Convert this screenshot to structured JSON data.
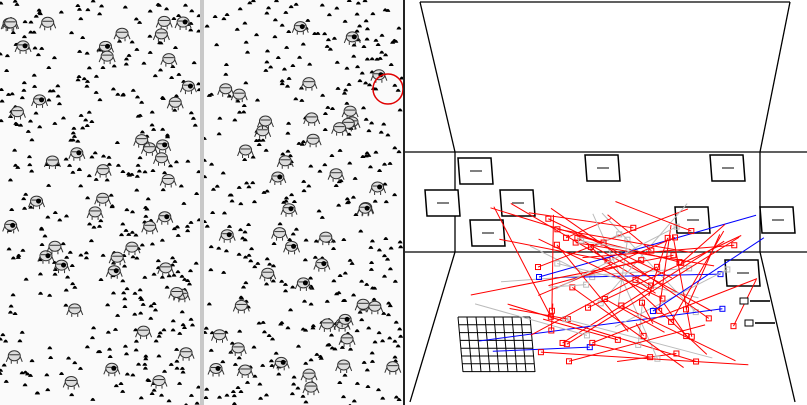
{
  "colors": {
    "dot": "#000000",
    "agent_outline": "#333333",
    "agent_fill": "#dddddd",
    "highlight": "#e00000",
    "edge_red": "#ff0000",
    "edge_blue": "#0000ff",
    "edge_gray": "#bbbbbb",
    "divider": "#c8c8c8"
  },
  "icons": {
    "agent": "agent-critter-icon",
    "food": "food-dot-icon",
    "selection": "selection-circle-icon"
  },
  "views": {
    "left": "simulation-world-view",
    "middle": "simulation-world-view-2",
    "right": "3d-network-view"
  }
}
